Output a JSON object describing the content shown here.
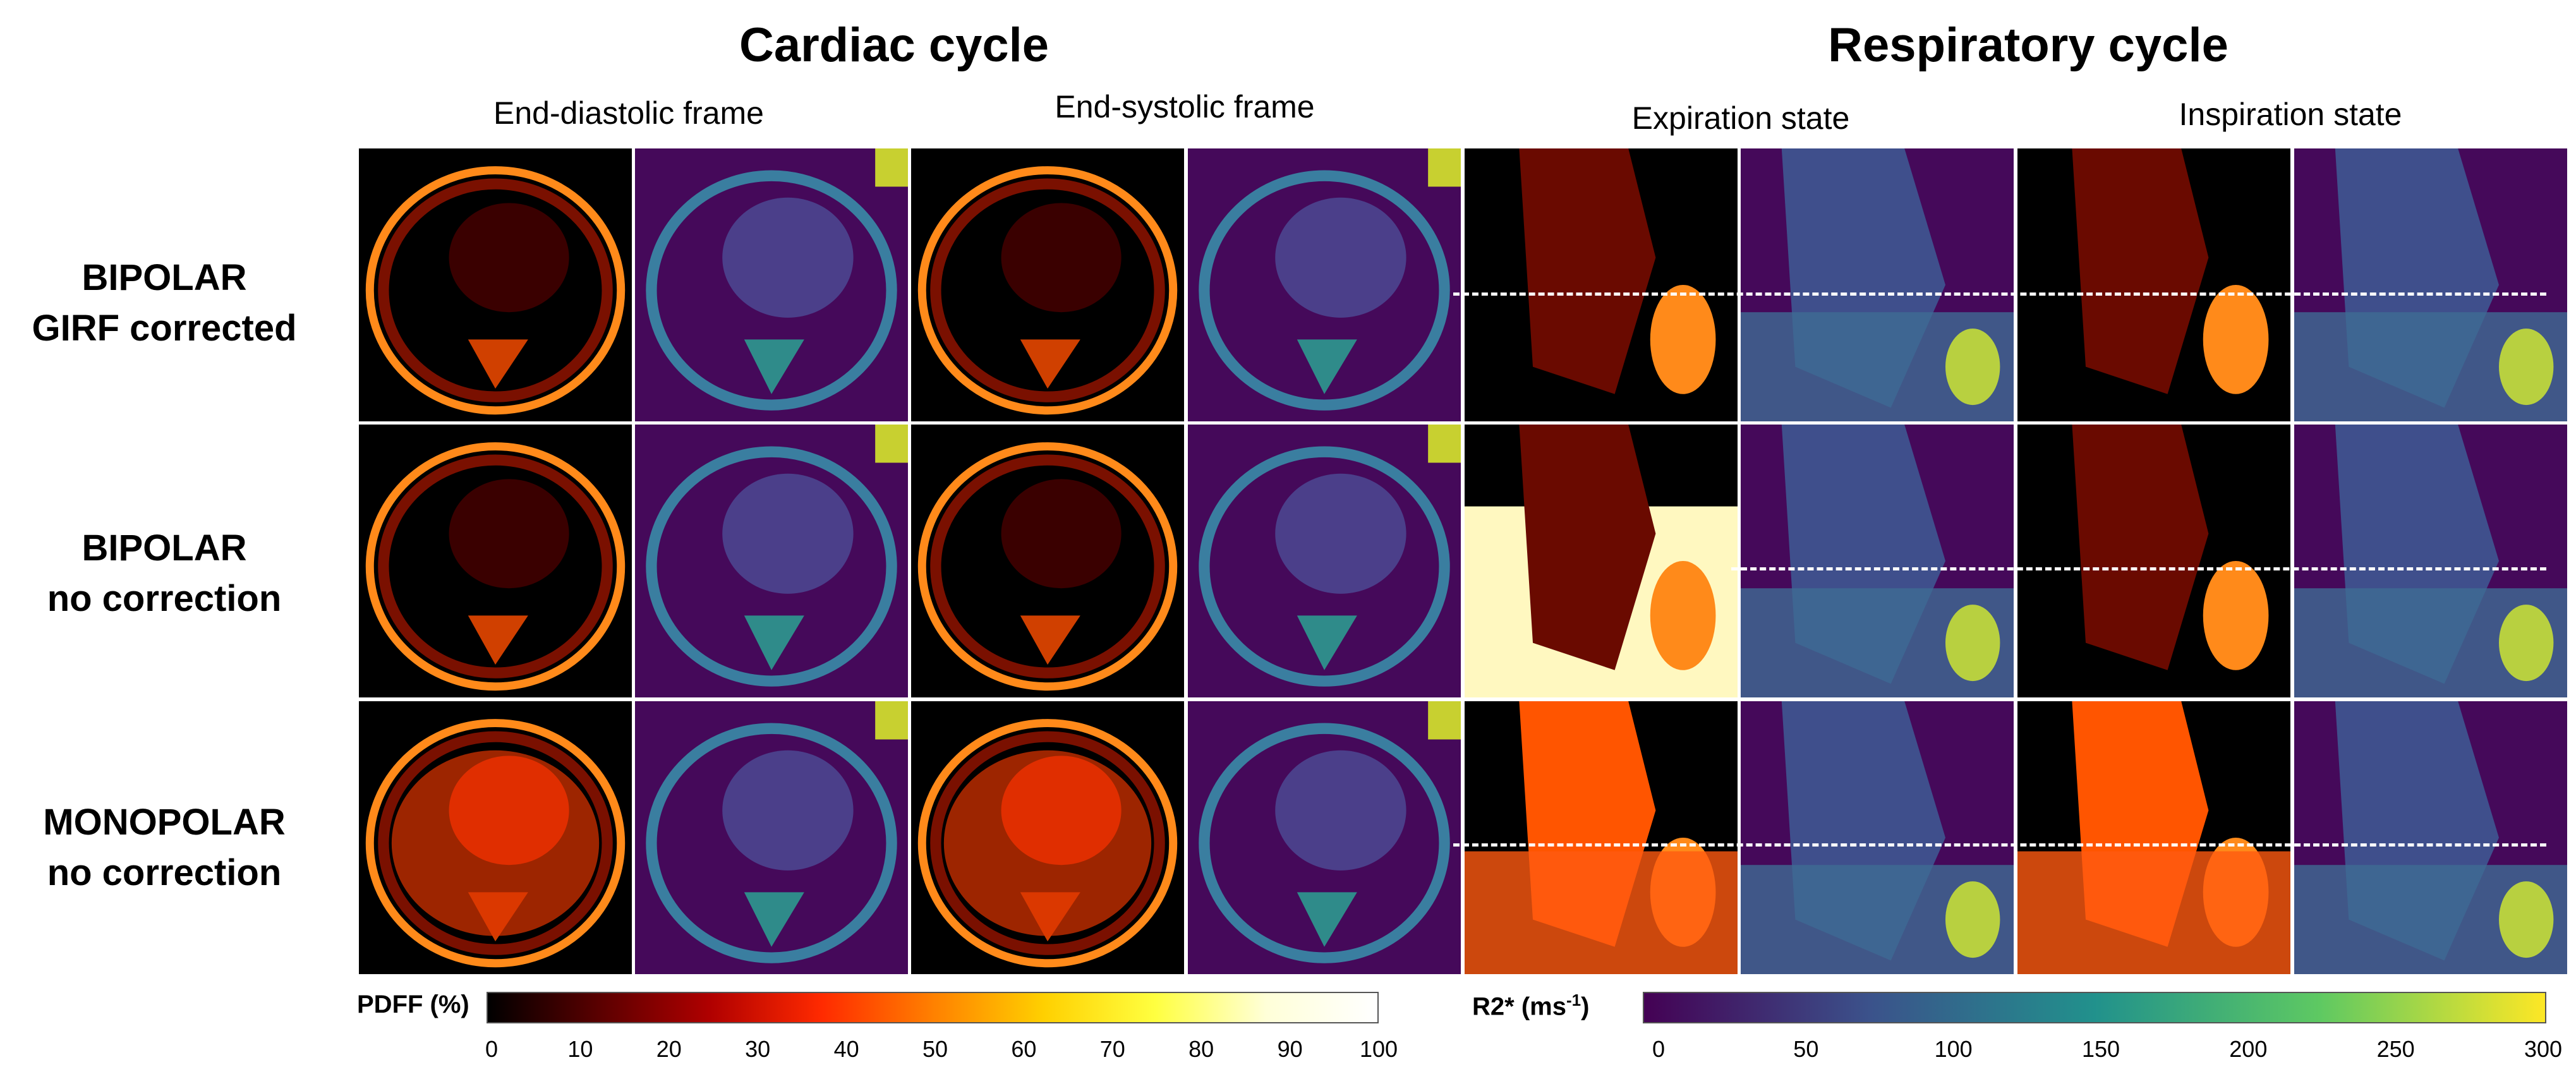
{
  "titles": {
    "cardiac": "Cardiac cycle",
    "respiratory": "Respiratory cycle"
  },
  "subtitles": {
    "end_diastolic": "End-diastolic frame",
    "end_systolic": "End-systolic frame",
    "expiration": "Expiration state",
    "inspiration": "Inspiration state"
  },
  "rows": [
    {
      "line1": "BIPOLAR",
      "line2": "GIRF corrected"
    },
    {
      "line1": "BIPOLAR",
      "line2": "no correction"
    },
    {
      "line1": "MONOPOLAR",
      "line2": "no correction"
    }
  ],
  "colorbars": {
    "pdff": {
      "label": "PDFF (%)",
      "ticks": [
        "0",
        "10",
        "20",
        "30",
        "40",
        "50",
        "60",
        "70",
        "80",
        "90",
        "100"
      ],
      "colors": [
        "#000000",
        "#5a0000",
        "#b00000",
        "#ff2a00",
        "#ff8000",
        "#ffd000",
        "#ffff40",
        "#ffffd8",
        "#ffffff"
      ]
    },
    "r2star": {
      "label_main": "R2* (ms",
      "label_sup": "-1",
      "label_close": ")",
      "ticks": [
        "0",
        "50",
        "100",
        "150",
        "200",
        "250",
        "300"
      ],
      "colors": [
        "#440154",
        "#3b528b",
        "#21918c",
        "#5ec962",
        "#fde725"
      ]
    }
  },
  "map_colors": {
    "pdff_bg": "#000000",
    "pdff_hot": "#ff5a00",
    "r2_bg": "#45095a",
    "r2_mid": "#3f6b93"
  }
}
